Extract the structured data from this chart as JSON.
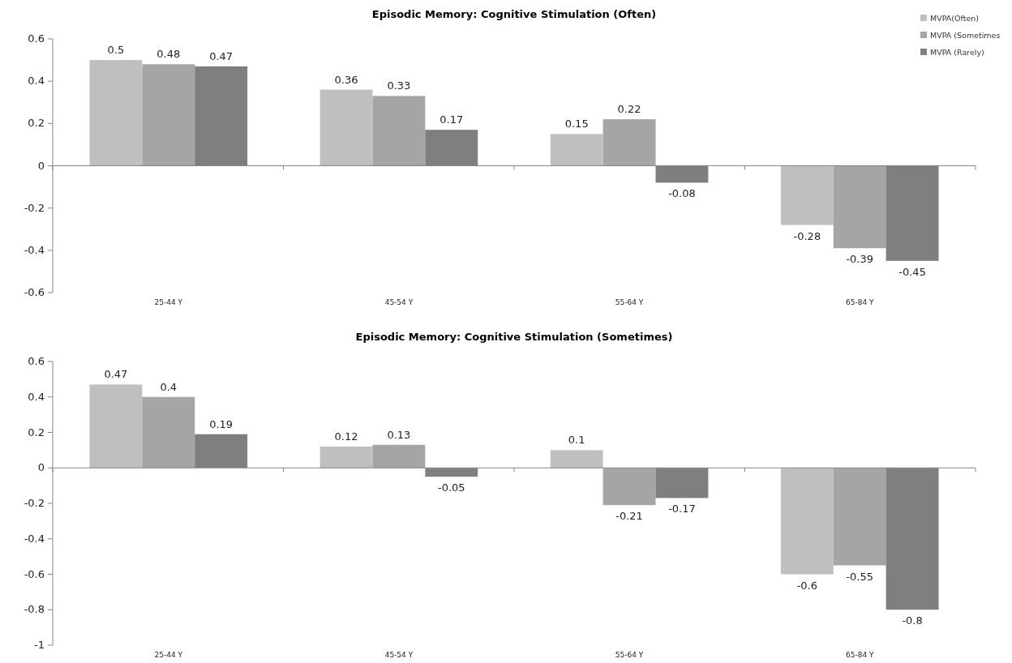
{
  "chart_data": [
    {
      "type": "bar",
      "title": "Episodic Memory: Cognitive Stimulation (Often)",
      "categories": [
        "25-44 Y",
        "45-54 Y",
        "55-64 Y",
        "65-84 Y"
      ],
      "series": [
        {
          "name": "MVPA(Often)",
          "color": "#bfbfbf",
          "values": [
            0.5,
            0.36,
            0.15,
            -0.28
          ]
        },
        {
          "name": "MVPA (Sometimes",
          "color": "#a5a5a5",
          "values": [
            0.48,
            0.33,
            0.22,
            -0.39
          ]
        },
        {
          "name": "MVPA (Rarely)",
          "color": "#7f7f7f",
          "values": [
            0.47,
            0.17,
            -0.08,
            -0.45
          ]
        }
      ],
      "ylim": [
        -0.6,
        0.6
      ],
      "yticks": [
        -0.6,
        -0.4,
        -0.2,
        0,
        0.2,
        0.4,
        0.6
      ],
      "data_labels": true,
      "legend": "top right"
    },
    {
      "type": "bar",
      "title": "Episodic Memory: Cognitive Stimulation (Sometimes)",
      "categories": [
        "25-44 Y",
        "45-54 Y",
        "55-64 Y",
        "65-84 Y"
      ],
      "series": [
        {
          "color": "#bfbfbf",
          "values": [
            0.47,
            0.12,
            0.1,
            -0.6
          ]
        },
        {
          "color": "#a5a5a5",
          "values": [
            0.4,
            0.13,
            -0.21,
            -0.55
          ]
        },
        {
          "color": "#7f7f7f",
          "values": [
            0.19,
            -0.05,
            -0.17,
            -0.8
          ]
        }
      ],
      "ylim": [
        -1,
        0.6
      ],
      "yticks": [
        -1,
        -0.8,
        -0.6,
        -0.4,
        -0.2,
        0,
        0.2,
        0.4,
        0.6
      ],
      "data_labels": true
    }
  ]
}
